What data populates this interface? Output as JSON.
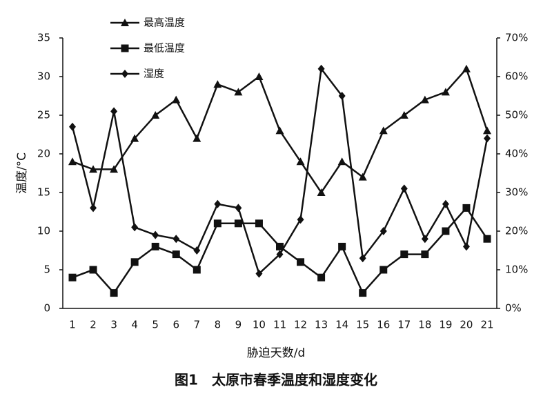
{
  "chart_data": {
    "type": "line",
    "title": "图1　太原市春季温度和湿度变化",
    "x_label": "胁迫天数/d",
    "y_label": "温度/°C",
    "categories": [
      "1",
      "2",
      "3",
      "4",
      "5",
      "6",
      "7",
      "8",
      "9",
      "10",
      "11",
      "12",
      "13",
      "14",
      "15",
      "16",
      "17",
      "18",
      "19",
      "20",
      "21"
    ],
    "series": [
      {
        "name": "最高温度",
        "color": "#111111",
        "marker": "triangle",
        "values": [
          19,
          18,
          18,
          22,
          25,
          27,
          22,
          29,
          28,
          30,
          23,
          19,
          15,
          19,
          17,
          23,
          25,
          27,
          28,
          31,
          23
        ]
      },
      {
        "name": "最低温度",
        "color": "#111111",
        "marker": "square",
        "values": [
          4,
          5,
          2,
          6,
          8,
          7,
          5,
          11,
          11,
          11,
          8,
          6,
          4,
          8,
          2,
          5,
          7,
          7,
          10,
          13,
          9
        ]
      },
      {
        "name": "湿度",
        "color": "#111111",
        "marker": "diamond",
        "axis": "y2",
        "values": [
          47,
          26,
          51,
          21,
          19,
          18,
          15,
          27,
          26,
          9,
          14,
          23,
          62,
          55,
          13,
          20,
          31,
          18,
          27,
          16,
          44
        ]
      }
    ],
    "ylim": [
      0,
      35
    ],
    "yticks": [
      0,
      5,
      10,
      15,
      20,
      25,
      30,
      35
    ],
    "y2lim": [
      0,
      70
    ],
    "y2ticks": [
      {
        "value": 0,
        "label": "0%"
      },
      {
        "value": 10,
        "label": "10%"
      },
      {
        "value": 20,
        "label": "20%"
      },
      {
        "value": 30,
        "label": "30%"
      },
      {
        "value": 40,
        "label": "40%"
      },
      {
        "value": 50,
        "label": "50%"
      },
      {
        "value": 60,
        "label": "60%"
      },
      {
        "value": 70,
        "label": "70%"
      }
    ],
    "grid": false,
    "legend": "upper left"
  }
}
